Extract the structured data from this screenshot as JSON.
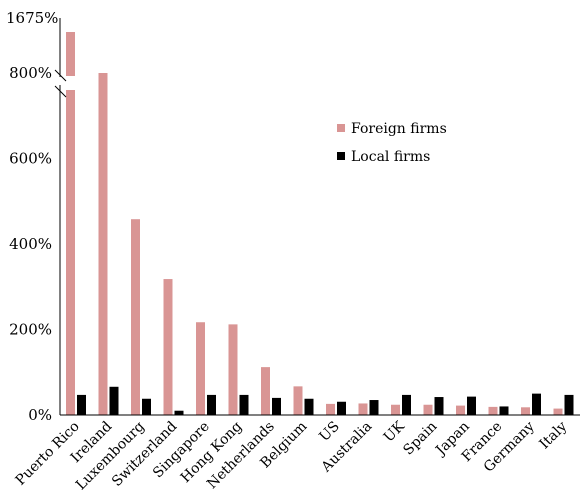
{
  "chart_data": {
    "type": "bar",
    "categories": [
      "Puerto Rico",
      "Ireland",
      "Luxembourg",
      "Switzerland",
      "Singapore",
      "Hong Kong",
      "Netherlands",
      "Belgium",
      "US",
      "Australia",
      "UK",
      "Spain",
      "Japan",
      "France",
      "Germany",
      "Italy"
    ],
    "series": [
      {
        "name": "Foreign firms",
        "color": "#d99594",
        "values": [
          1675,
          800,
          458,
          318,
          217,
          212,
          112,
          67,
          26,
          27,
          24,
          24,
          22,
          19,
          18,
          15
        ]
      },
      {
        "name": "Local firms",
        "color": "#000000",
        "values": [
          47,
          66,
          38,
          10,
          47,
          47,
          40,
          38,
          31,
          35,
          47,
          42,
          43,
          20,
          50,
          47
        ]
      }
    ],
    "y_ticks": [
      "0%",
      "200%",
      "400%",
      "600%",
      "800%"
    ],
    "y_top_label": "1675%",
    "ylim": [
      0,
      800
    ],
    "axis_break": true,
    "legend_position": "top-right",
    "grid": false
  }
}
